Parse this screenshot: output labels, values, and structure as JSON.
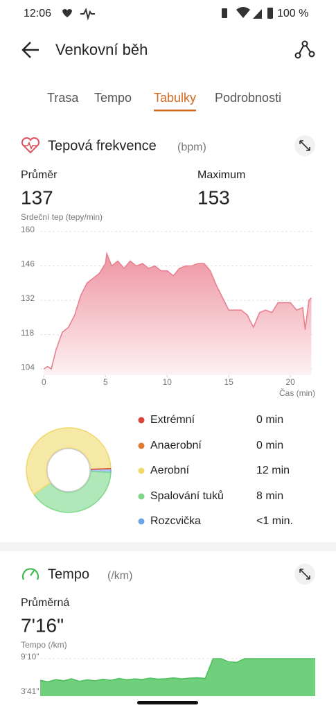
{
  "status_bar": {
    "time": "12:06",
    "battery": "100 %"
  },
  "header": {
    "title": "Venkovní běh"
  },
  "tabs": {
    "items": [
      "Trasa",
      "Tempo",
      "Tabulky",
      "Podrobnosti"
    ],
    "active": 2,
    "active_color": "#d2691e"
  },
  "heart_rate": {
    "avg_label": "Průměr",
    "avg": 137,
    "max_label": "Maximum",
    "max": 153
  },
  "tempo": {
    "title": "Tempo",
    "unit": "(/km)",
    "avg_label": "Průměrná",
    "avg": "7'16\""
  },
  "chart_data": [
    {
      "type": "area",
      "title": "Tepová frekvence",
      "unit": "(bpm)",
      "y_label": "Srdeční tep (tepy/min)",
      "x_label": "Čas (min)",
      "color": "#e8808f",
      "x": [
        0,
        0.3,
        0.6,
        1,
        1.5,
        2,
        2.5,
        3,
        3.5,
        4,
        4.5,
        5,
        5.1,
        5.5,
        6,
        6.5,
        7,
        7.5,
        8,
        8.5,
        9,
        9.5,
        10,
        10.5,
        11,
        11.5,
        12,
        12.5,
        13,
        13.5,
        14,
        14.5,
        15,
        15.5,
        16,
        16.5,
        17,
        17.5,
        18,
        18.5,
        19,
        19.5,
        20,
        20.5,
        21,
        21.2,
        21.5,
        21.7
      ],
      "values": [
        104,
        105,
        104,
        112,
        119,
        121,
        126,
        134,
        139,
        141,
        143,
        147,
        151,
        146,
        148,
        145,
        148,
        146,
        147,
        145,
        146,
        144,
        144,
        142,
        145,
        146,
        146,
        147,
        147,
        144,
        138,
        133,
        128,
        128,
        128,
        126,
        121,
        127,
        128,
        127,
        131,
        131,
        131,
        128,
        129,
        120,
        132,
        133
      ],
      "xlim": [
        -0.3,
        21.9
      ],
      "ylim": [
        101.5,
        160
      ],
      "xticks": [
        0,
        5,
        10,
        15,
        20
      ],
      "yticks": [
        104,
        118,
        132,
        146,
        160
      ],
      "grid": true
    },
    {
      "type": "pie",
      "categories": [
        "Extrémní",
        "Anaerobní",
        "Aerobní",
        "Spalování tuků",
        "Rozcvička"
      ],
      "values": [
        0,
        0,
        12,
        8,
        0.3
      ],
      "value_labels": [
        "0 min",
        "0 min",
        "12 min",
        "8 min",
        "<1 min."
      ],
      "colors": [
        "#d9433a",
        "#e07a2e",
        "#f0d86a",
        "#7dd88a",
        "#6fa3e8"
      ]
    },
    {
      "type": "area",
      "color": "#6fcf7c",
      "y_label": "Tempo (/km)",
      "values": [
        345,
        330,
        352,
        340,
        360,
        335,
        350,
        340,
        355,
        345,
        362,
        350,
        358,
        352,
        365,
        355,
        360,
        368,
        358,
        365,
        370,
        362,
        550,
        550,
        520,
        515,
        550,
        550,
        550,
        550,
        550,
        550,
        550,
        550,
        550,
        550
      ],
      "ylim": [
        221,
        550
      ],
      "yticks": [
        {
          "value": 221,
          "label": "3'41\""
        },
        {
          "value": 550,
          "label": "9'10\""
        }
      ],
      "grid": true
    }
  ]
}
